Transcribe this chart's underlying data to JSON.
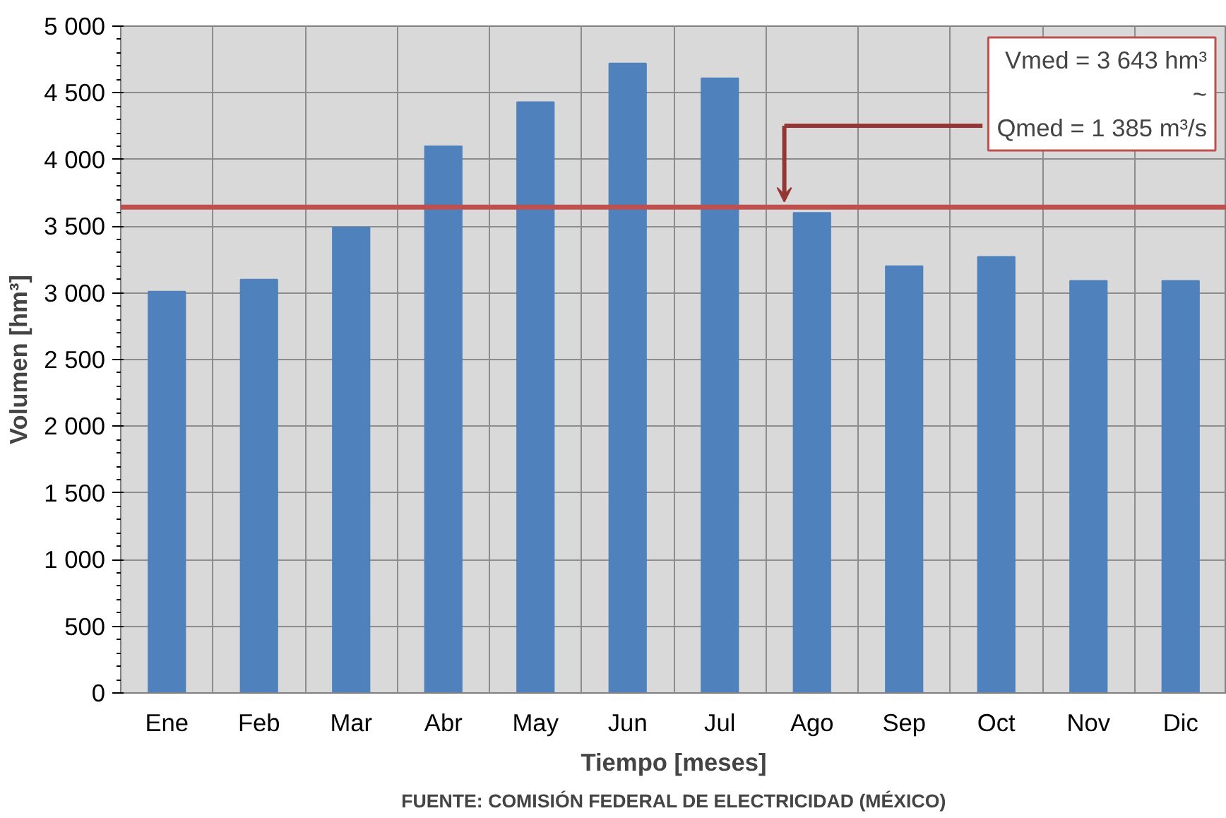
{
  "chart_data": {
    "type": "bar",
    "xlabel": "Tiempo [meses]",
    "ylabel": "Volumen [hm³]",
    "categories": [
      "Ene",
      "Feb",
      "Mar",
      "Abr",
      "May",
      "Jun",
      "Jul",
      "Ago",
      "Sep",
      "Oct",
      "Nov",
      "Dic"
    ],
    "values": [
      3010,
      3100,
      3490,
      4100,
      4430,
      4720,
      4610,
      3600,
      3200,
      3270,
      3090,
      3090
    ],
    "color": "#4f81bd",
    "ylim": [
      0,
      5000
    ],
    "yticks": [
      0,
      500,
      {
        "value": 1000,
        "label": "1 000"
      },
      {
        "value": 1500,
        "label": "1 500"
      },
      {
        "value": 2000,
        "label": "2 000"
      },
      {
        "value": 2500,
        "label": "2 500"
      },
      {
        "value": 3000,
        "label": "3 000"
      },
      {
        "value": 3500,
        "label": "3 500"
      },
      {
        "value": 4000,
        "label": "4 000"
      },
      {
        "value": 4500,
        "label": "4 500"
      },
      {
        "value": 5000,
        "label": "5 000"
      }
    ],
    "grid": true,
    "ref_lines": [
      {
        "axis": "y",
        "value": 3643,
        "label": "Vmed = 3 643 hm³\n~\nQmed = 1 385 m³/s",
        "color": "#c0504d"
      }
    ],
    "annotations": [
      "FUENTE: COMISIÓN FEDERAL DE ELECTRICIDAD (MÉXICO)"
    ]
  }
}
